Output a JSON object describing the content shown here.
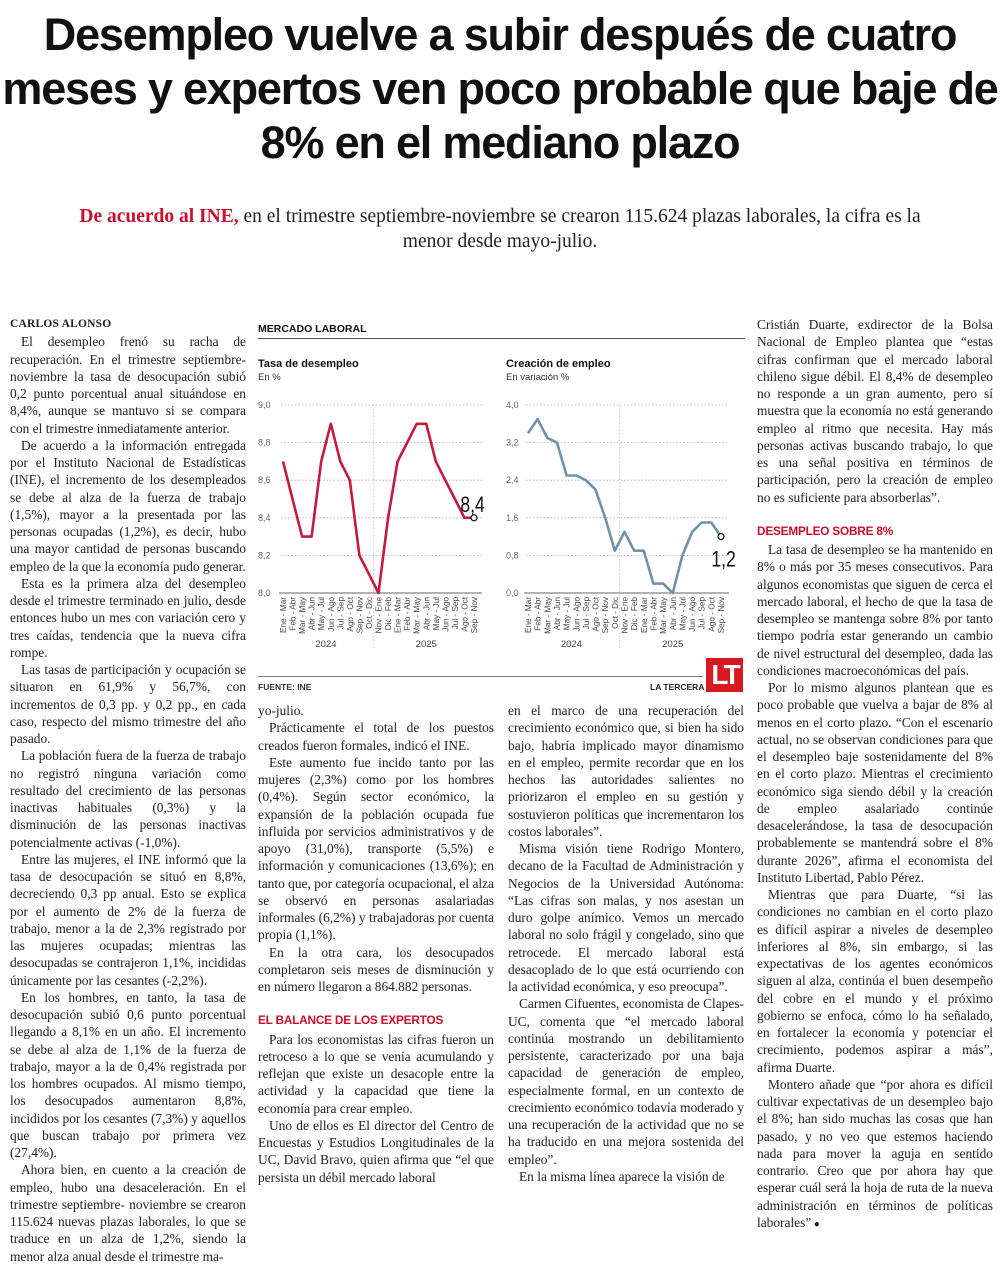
{
  "article": {
    "headline": "Desempleo vuelve a subir después de cuatro meses y expertos ven poco probable que baje de 8% en el mediano plazo",
    "subhead_lead": "De acuerdo al INE,",
    "subhead_text": " en el trimestre septiembre-noviembre se crearon 115.624 plazas laborales, la cifra es la menor desde mayo-julio.",
    "byline": "CARLOS ALONSO"
  },
  "columns": {
    "c1": [
      "El desempleo frenó su racha de recuperación. En el trimestre septiembre-noviembre la tasa de desocupación subió 0,2 punto porcentual anual situándose en 8,4%, aunque se mantuvo si se compara con el trimestre inmediatamente anterior.",
      "De acuerdo a la información entregada por el Instituto Nacional de Estadísticas (INE), el incremento de los desempleados se debe al alza de la fuerza de trabajo (1,5%), mayor a la presentada por las personas ocupadas (1,2%), es decir, hubo una mayor cantidad de personas buscando empleo de la que la economía pudo generar.",
      "Esta es la primera alza del desempleo desde el trimestre terminado en julio, desde entonces hubo un mes con variación cero y tres caídas, tendencia que la nueva cifra rompe.",
      "Las tasas de participación y ocupación se situaron en 61,9% y 56,7%, con incrementos de 0,3 pp. y 0,2 pp., en cada caso, respecto del mismo trimestre del año pasado.",
      "La población fuera de la fuerza de trabajo no registró ninguna variación como resultado del crecimiento de las personas inactivas habituales (0,3%) y la disminución de las personas inactivas potencialmente activas (-1,0%).",
      "Entre las mujeres, el INE informó que la tasa de desocupación se situó en 8,8%, decreciendo 0,3 pp anual. Esto se explica por el aumento de 2% de la fuerza de trabajo, menor a la de 2,3% registrado por las mujeres ocupadas; mientras las desocupadas se contrajeron 1,1%, incididas únicamente por las cesantes (-2,2%).",
      "En los hombres, en tanto, la tasa de desocupación subió 0,6 punto porcentual llegando a 8,1% en un año. El incremento se debe al alza de 1,1% de la fuerza de trabajo, mayor a la de 0,4% registrada por los hombres ocupados. Al mismo tiempo, los desocupados aumentaron 8,8%, incididos por los cesantes (7,3%) y aquellos que buscan trabajo por primera vez (27,4%).",
      "Ahora bien, en cuento a la creación de empleo, hubo una desaceleración. En el trimestre septiembre- noviembre se crearon 115.624 nuevas plazas laborales, lo que se traduce en un alza de 1,2%, siendo la menor alza anual desde el trimestre ma-"
    ],
    "c2": [
      "yo-julio.",
      "Prácticamente el total de los puestos creados fueron formales, indicó el INE.",
      "Este aumento fue incido tanto por las mujeres (2,3%) como por los hombres (0,4%). Según sector económico, la expansión de la población ocupada fue influida por servicios administrativos y de apoyo (31,0%), transporte (5,5%) e información y comunicaciones (13,6%); en tanto que, por categoría ocupacional, el alza se observó en personas asalariadas informales (6,2%) y trabajadoras por cuenta propia (1,1%).",
      "En la otra cara, los desocupados completaron seis meses de disminución y en número llegaron a 864.882 personas."
    ],
    "c2_heading": "EL BALANCE DE LOS EXPERTOS",
    "c2b": [
      "Para los economistas las cifras fueron un retroceso a lo que se venía acumulando y reflejan que existe un desacople entre la actividad y la capacidad que tiene la economía para crear empleo.",
      "Uno de ellos es El director del Centro de Encuestas y Estudios Longitudinales de la UC, David Bravo, quien afirma que “el que persista un débil mercado laboral"
    ],
    "c3": [
      "en el marco de una recuperación del crecimiento económico que, si bien ha sido bajo, habría implicado mayor dinamismo en el empleo, permite recordar que en los hechos las autoridades salientes no priorizaron el empleo en su gestión y sostuvieron políticas que incrementaron los costos laborales”.",
      "Misma visión tiene Rodrigo Montero, decano de la Facultad de Administración y Negocios de la Universidad Autónoma: “Las cifras son malas, y nos asestan un duro golpe anímico. Vemos un mercado laboral no solo frágil y congelado, sino que retrocede. El mercado laboral está desacoplado de lo que está ocurriendo con la actividad económica, y eso preocupa”.",
      "Carmen Cifuentes, economista de Clapes-UC, comenta que “el mercado laboral continúa mostrando un debilitamiento persistente, caracterizado por una baja capacidad de generación de empleo, especialmente formal, en un contexto de crecimiento económico todavía moderado y una recuperación de la actividad que no se ha traducido en una mejora sostenida del empleo”.",
      "En la misma línea aparece la visión de"
    ],
    "c4": [
      "Cristián Duarte, exdirector de la Bolsa Nacional de Empleo plantea que “estas cifras confirman que el mercado laboral chileno sigue débil. El 8,4% de desempleo no responde a un gran aumento, pero sí muestra que la economía no está generando empleo al ritmo que necesita. Hay más personas activas buscando trabajo, lo que es una señal positiva en términos de participación, pero la creación de empleo no es suficiente para absorberlas”."
    ],
    "c4_heading": "DESEMPLEO SOBRE 8%",
    "c4b": [
      "La tasa de desempleo se ha mantenido en 8% o más por 35 meses consecutivos. Para algunos economistas que siguen de cerca el mercado laboral, el hecho de que la tasa de desempleo se mantenga sobre 8% por tanto tiempo podría estar generando un cambio de nivel estructural del desempleo, dada las condiciones macroeconómicas del país.",
      "Por lo mismo algunos plantean que es poco probable que vuelva a bajar de 8% al menos en el corto plazo. “Con el escenario actual, no se observan condiciones para que el desempleo baje sostenidamente del 8% en el corto plazo. Mientras el crecimiento económico siga siendo débil y la creación de empleo asalariado continúe desacelerándose, la tasa de desocupación probablemente se mantendrá sobre el 8% durante 2026”, afirma el economista del Instituto Libertad, Pablo Pérez.",
      "Mientras que para Duarte, “si las condiciones no cambian en el corto plazo es difícil aspirar a niveles de desempleo inferiores al 8%, sin embargo, si las expectativas de los agentes económicos siguen al alza, continúa el buen desempeño del cobre en el mundo y el próximo gobierno se enfoca, cómo lo ha señalado, en fortalecer la economía y potenciar el crecimiento, podemos aspirar a más”, afirma Duarte.",
      "Montero añade que “por ahora es difícil cultivar expectativas de un desempleo bajo el 8%; han sido muchas las cosas que han pasado, y no veo que estemos haciendo nada para mover la aguja en sentido contrario. Creo que por ahora hay que esperar cuál será la hoja de ruta de la nueva administración en términos de políticas laborales”"
    ]
  },
  "infographic": {
    "title": "MERCADO LABORAL",
    "source": "FUENTE: INE",
    "brand": "LA TERCERA",
    "logo_text": "LT"
  },
  "chart_data": [
    {
      "type": "line",
      "title": "Tasa de desempleo",
      "subtitle": "En %",
      "color": "#c41a3b",
      "categories": [
        "Ene - Mar",
        "Feb - Abr",
        "Mar - May",
        "Abr - Jun",
        "May - Jul",
        "Jun - Ago",
        "Jul - Sep",
        "Ago - Oct",
        "Sep - Nov",
        "Oct - Dic",
        "Nov - Ene",
        "Dic - Feb",
        "Ene - Mar",
        "Feb - Abr",
        "Mar - May",
        "Abr - Jun",
        "May - Jul",
        "Jun - Ago",
        "Jul - Sep",
        "Ago - Oct",
        "Sep - Nov"
      ],
      "year_groups": [
        {
          "label": "2024",
          "from": 0,
          "to": 9
        },
        {
          "label": "2025",
          "from": 10,
          "to": 20
        }
      ],
      "values": [
        8.7,
        8.5,
        8.3,
        8.3,
        8.7,
        8.9,
        8.7,
        8.6,
        8.2,
        8.1,
        8.0,
        8.4,
        8.7,
        8.8,
        8.9,
        8.9,
        8.7,
        8.6,
        8.5,
        8.4,
        8.4
      ],
      "ylim": [
        8.0,
        9.0
      ],
      "yticks": [
        "8,0",
        "8,2",
        "8,4",
        "8,6",
        "8,8",
        "9,0"
      ],
      "last_label": "8,4",
      "grid": true
    },
    {
      "type": "line",
      "title": "Creación de empleo",
      "subtitle": "En variación %",
      "color": "#6e93a6",
      "categories": [
        "Ene - Mar",
        "Feb - Abr",
        "Mar - May",
        "Abr - Jun",
        "May - Jul",
        "Jun - Ago",
        "Jul - Sep",
        "Ago - Oct",
        "Sep - Nov",
        "Oct - Dic",
        "Nov - Ene",
        "Dic - Feb",
        "Ene - Mar",
        "Feb - Abr",
        "Mar - May",
        "Abr - Jun",
        "May - Jul",
        "Jun - Ago",
        "Jul - Sep",
        "Ago - Oct",
        "Sep - Nov"
      ],
      "year_groups": [
        {
          "label": "2024",
          "from": 0,
          "to": 9
        },
        {
          "label": "2025",
          "from": 10,
          "to": 20
        }
      ],
      "values": [
        3.4,
        3.7,
        3.3,
        3.2,
        2.5,
        2.5,
        2.4,
        2.2,
        1.6,
        0.9,
        1.3,
        0.9,
        0.9,
        0.2,
        0.2,
        0.0,
        0.8,
        1.3,
        1.5,
        1.5,
        1.2
      ],
      "ylim": [
        0.0,
        4.0
      ],
      "yticks": [
        "0,0",
        "0,8",
        "1,6",
        "2,4",
        "3,2",
        "4,0"
      ],
      "last_label": "1,2",
      "grid": true
    }
  ]
}
